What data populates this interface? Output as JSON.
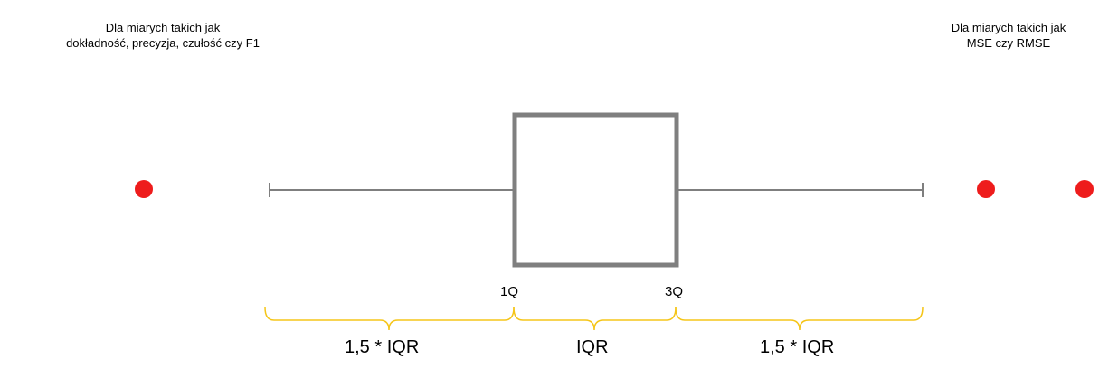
{
  "notes": {
    "left": {
      "line1": "Dla miarych takich jak",
      "line2": "dokładność, precyzja, czułość czy F1"
    },
    "right": {
      "line1": "Dla miarych takich jak",
      "line2": "MSE czy RMSE"
    }
  },
  "quartiles": {
    "q1": "1Q",
    "q3": "3Q"
  },
  "brackets": {
    "left": "1,5 * IQR",
    "middle": "IQR",
    "right": "1,5 * IQR"
  },
  "colors": {
    "box": "#7f7f7f",
    "whisker": "#7f7f7f",
    "outlier": "#ee1c1c",
    "brace": "#f5c518"
  }
}
